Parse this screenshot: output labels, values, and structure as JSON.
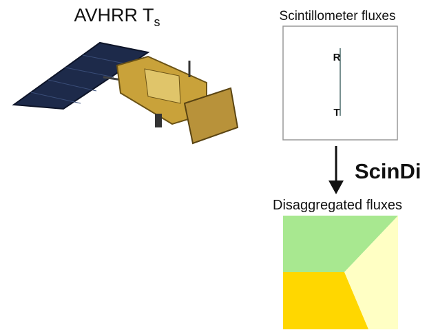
{
  "satellite": {
    "label": "AVHRR T",
    "subscript": "s"
  },
  "scintillometer": {
    "title": "Scintillometer fluxes",
    "receiver": "R",
    "transmitter": "T"
  },
  "method": "ScinDi",
  "disaggregated": {
    "title": "Disaggregated fluxes"
  }
}
